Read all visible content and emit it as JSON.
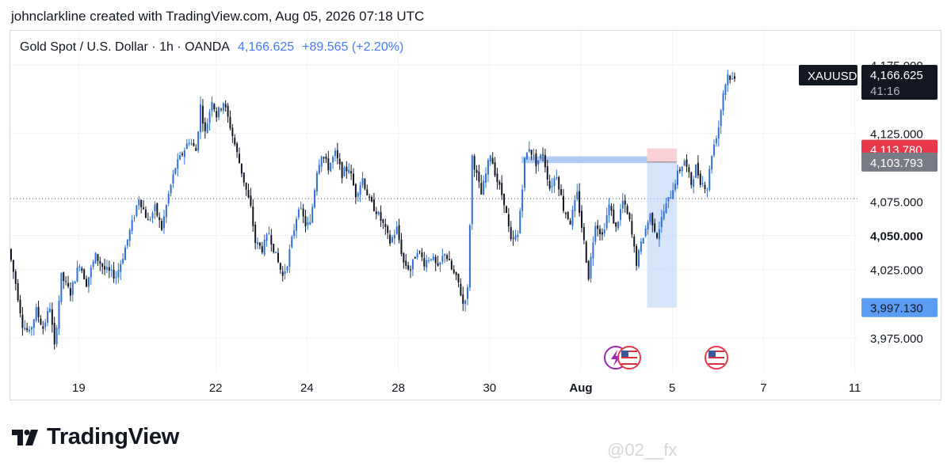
{
  "attribution": "johnclarkline created with TradingView.com, Aug 05, 2026 07:18 UTC",
  "header": {
    "symbol_desc": "Gold Spot / U.S. Dollar · 1h · OANDA",
    "last": "4,166.625",
    "change": "+89.565 (+2.20%)"
  },
  "chart_data": {
    "type": "candlestick",
    "symbol": "XAUUSD",
    "interval": "1h",
    "ylim": [
      3950,
      4182
    ],
    "y_ticks": [
      {
        "v": 3975,
        "label": "3,975.000"
      },
      {
        "v": 4025,
        "label": "4,025.000"
      },
      {
        "v": 4050,
        "label": "4,050.000",
        "bold": true
      },
      {
        "v": 4075,
        "label": "4,075.000"
      },
      {
        "v": 4125,
        "label": "4,125.000"
      },
      {
        "v": 4175,
        "label": "4,175.000"
      }
    ],
    "x_ticks": [
      {
        "t": 1.5,
        "label": "19"
      },
      {
        "t": 4.5,
        "label": "22"
      },
      {
        "t": 6.5,
        "label": "24"
      },
      {
        "t": 8.5,
        "label": "28"
      },
      {
        "t": 10.5,
        "label": "30"
      },
      {
        "t": 12.5,
        "label": "Aug",
        "bold": true
      },
      {
        "t": 14.5,
        "label": "5"
      },
      {
        "t": 16.5,
        "label": "7"
      },
      {
        "t": 18.5,
        "label": "11"
      }
    ],
    "price_labels": {
      "symbol_tag": "XAUUSD",
      "last_price": "4,166.625",
      "countdown": "41:16",
      "stop": "4,113.780",
      "entry": "4,103.793",
      "target": "3,997.130"
    },
    "levels": {
      "last": 4166.625,
      "stop": 4113.78,
      "entry": 4103.793,
      "target": 3997.13,
      "dotted": 4077
    },
    "zone": {
      "start_t": 13.95,
      "end_t": 14.6
    },
    "resistance_band": {
      "start_t": 11.2,
      "end_t": 13.95,
      "low": 4103,
      "high": 4108
    },
    "path": [
      [
        0,
        4040
      ],
      [
        0.15,
        4015
      ],
      [
        0.3,
        3985
      ],
      [
        0.45,
        3978
      ],
      [
        0.6,
        3995
      ],
      [
        0.75,
        3982
      ],
      [
        0.9,
        3998
      ],
      [
        1.0,
        3968
      ],
      [
        1.15,
        4020
      ],
      [
        1.35,
        4008
      ],
      [
        1.55,
        4030
      ],
      [
        1.7,
        4015
      ],
      [
        1.9,
        4035
      ],
      [
        2.1,
        4025
      ],
      [
        2.35,
        4020
      ],
      [
        2.5,
        4035
      ],
      [
        2.75,
        4065
      ],
      [
        2.85,
        4078
      ],
      [
        3.05,
        4060
      ],
      [
        3.2,
        4070
      ],
      [
        3.35,
        4055
      ],
      [
        3.5,
        4080
      ],
      [
        3.65,
        4100
      ],
      [
        3.8,
        4110
      ],
      [
        3.95,
        4120
      ],
      [
        4.1,
        4112
      ],
      [
        4.2,
        4145
      ],
      [
        4.3,
        4125
      ],
      [
        4.45,
        4150
      ],
      [
        4.55,
        4138
      ],
      [
        4.7,
        4148
      ],
      [
        4.85,
        4130
      ],
      [
        5.0,
        4110
      ],
      [
        5.15,
        4090
      ],
      [
        5.3,
        4070
      ],
      [
        5.4,
        4045
      ],
      [
        5.55,
        4040
      ],
      [
        5.7,
        4052
      ],
      [
        5.85,
        4035
      ],
      [
        6.0,
        4020
      ],
      [
        6.1,
        4030
      ],
      [
        6.25,
        4055
      ],
      [
        6.35,
        4072
      ],
      [
        6.5,
        4058
      ],
      [
        6.6,
        4058
      ],
      [
        6.75,
        4098
      ],
      [
        6.85,
        4110
      ],
      [
        7.0,
        4100
      ],
      [
        7.15,
        4110
      ],
      [
        7.3,
        4095
      ],
      [
        7.45,
        4100
      ],
      [
        7.6,
        4080
      ],
      [
        7.75,
        4092
      ],
      [
        7.9,
        4075
      ],
      [
        8.05,
        4068
      ],
      [
        8.2,
        4058
      ],
      [
        8.35,
        4045
      ],
      [
        8.5,
        4055
      ],
      [
        8.65,
        4030
      ],
      [
        8.8,
        4025
      ],
      [
        8.95,
        4040
      ],
      [
        9.1,
        4030
      ],
      [
        9.25,
        4035
      ],
      [
        9.4,
        4025
      ],
      [
        9.55,
        4038
      ],
      [
        9.7,
        4025
      ],
      [
        9.85,
        4015
      ],
      [
        9.95,
        4000
      ],
      [
        10.05,
        4010
      ],
      [
        10.15,
        4108
      ],
      [
        10.35,
        4080
      ],
      [
        10.55,
        4110
      ],
      [
        10.7,
        4090
      ],
      [
        10.85,
        4075
      ],
      [
        11.0,
        4045
      ],
      [
        11.15,
        4050
      ],
      [
        11.3,
        4105
      ],
      [
        11.4,
        4115
      ],
      [
        11.55,
        4103
      ],
      [
        11.7,
        4110
      ],
      [
        11.85,
        4085
      ],
      [
        12.0,
        4095
      ],
      [
        12.15,
        4070
      ],
      [
        12.3,
        4060
      ],
      [
        12.45,
        4080
      ],
      [
        12.6,
        4045
      ],
      [
        12.7,
        4020
      ],
      [
        12.85,
        4060
      ],
      [
        13.0,
        4050
      ],
      [
        13.15,
        4072
      ],
      [
        13.3,
        4055
      ],
      [
        13.45,
        4075
      ],
      [
        13.6,
        4060
      ],
      [
        13.75,
        4030
      ],
      [
        13.9,
        4050
      ],
      [
        14.05,
        4065
      ],
      [
        14.2,
        4050
      ],
      [
        14.35,
        4068
      ],
      [
        14.5,
        4080
      ],
      [
        14.65,
        4095
      ],
      [
        14.8,
        4105
      ],
      [
        14.95,
        4088
      ],
      [
        15.05,
        4100
      ],
      [
        15.15,
        4090
      ],
      [
        15.3,
        4085
      ],
      [
        15.4,
        4110
      ],
      [
        15.55,
        4130
      ],
      [
        15.65,
        4155
      ],
      [
        15.75,
        4168
      ],
      [
        15.85,
        4164
      ]
    ]
  },
  "events": [
    "flash-icon",
    "us-flag-icon",
    "us-flag-icon"
  ],
  "footer": {
    "brand": "TradingView"
  },
  "watermark": "@02__fx"
}
